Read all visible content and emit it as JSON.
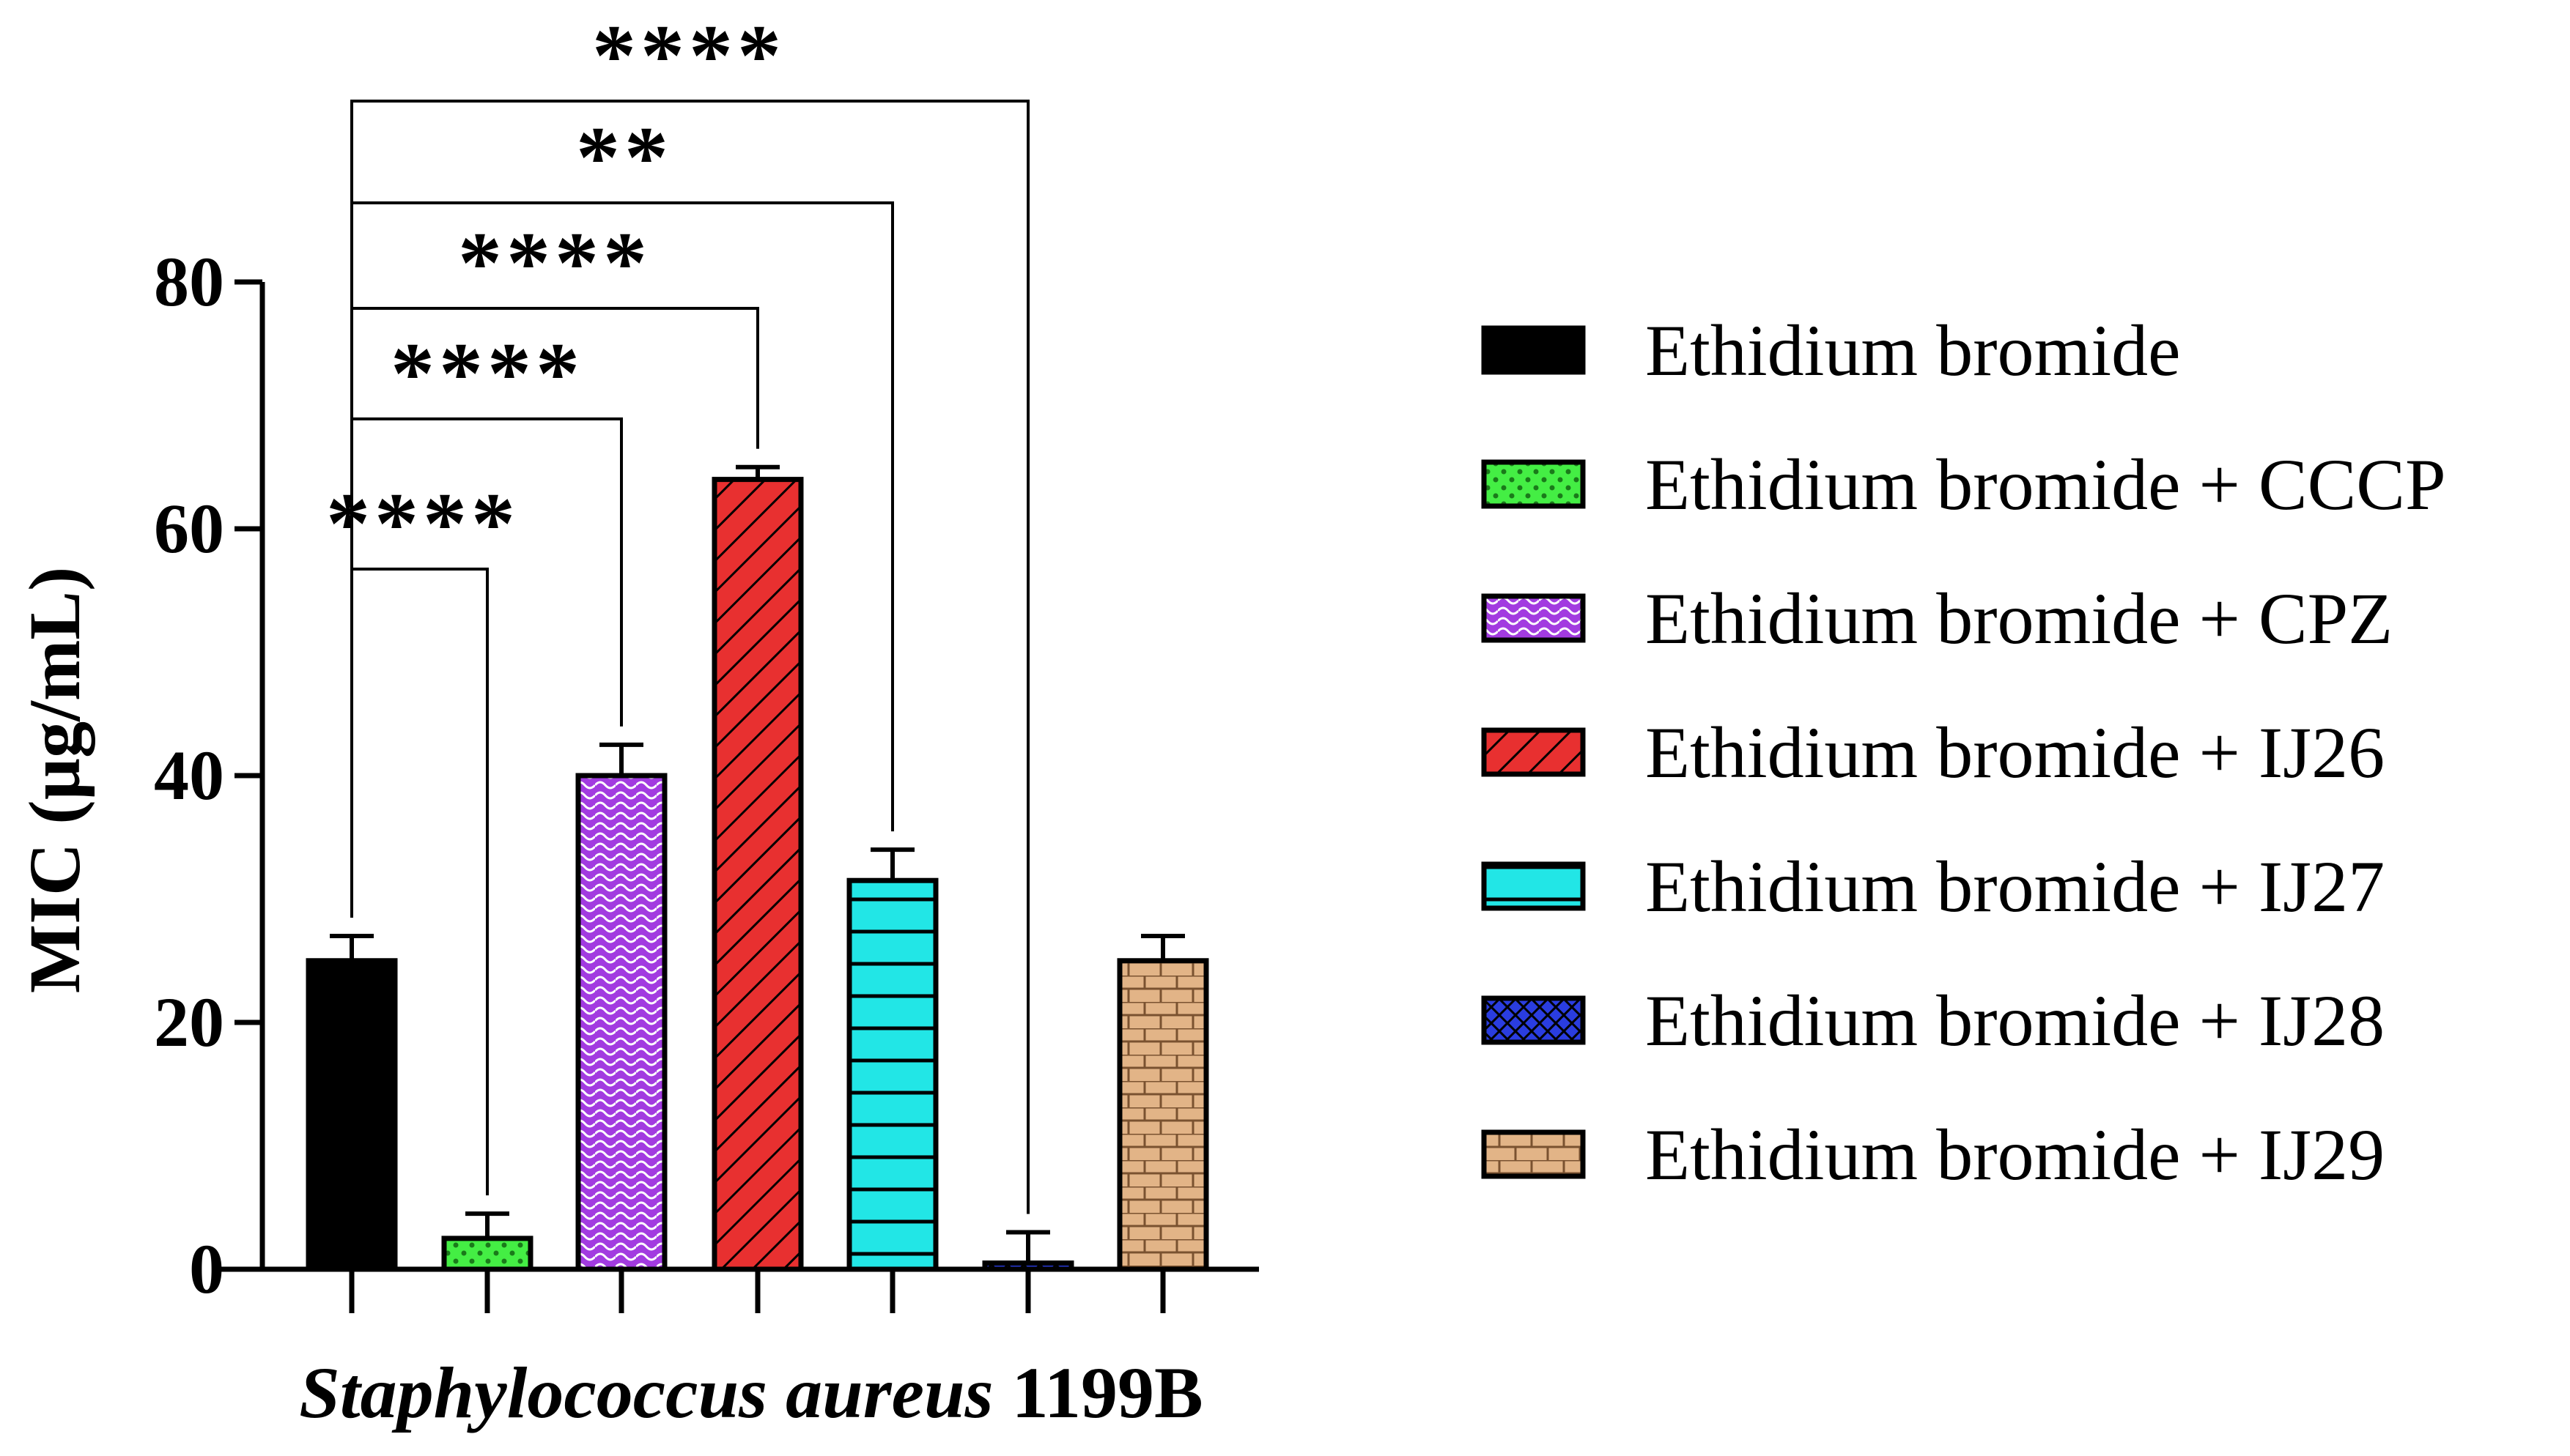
{
  "chart_data": {
    "type": "bar",
    "ylabel": "MIC (µg/mL)",
    "xlabel_italic": "Staphylococcus aureus",
    "xlabel_rest": " 1199B",
    "ylim": [
      0,
      80
    ],
    "yticks": [
      "0",
      "20",
      "40",
      "60",
      "80"
    ],
    "grid": false,
    "legend_position": "right",
    "series": [
      {
        "name": "Ethidium bromide",
        "value": 25,
        "error": 2,
        "color": "#000000",
        "pattern": "solid"
      },
      {
        "name": "Ethidium bromide + CCCP",
        "value": 2.5,
        "error": 2,
        "color": "#44ee44",
        "pattern": "dots"
      },
      {
        "name": "Ethidium bromide + CPZ",
        "value": 40,
        "error": 2.5,
        "color": "#a23be0",
        "pattern": "waves"
      },
      {
        "name": "Ethidium bromide + IJ26",
        "value": 64,
        "error": 1,
        "color": "#e83030",
        "pattern": "diagonal"
      },
      {
        "name": "Ethidium bromide + IJ27",
        "value": 31.5,
        "error": 2.5,
        "color": "#22e6e6",
        "pattern": "horizontal"
      },
      {
        "name": "Ethidium bromide + IJ28",
        "value": 0.5,
        "error": 2.5,
        "color": "#2a3de0",
        "pattern": "crosshatch"
      },
      {
        "name": "Ethidium bromide + IJ29",
        "value": 25,
        "error": 2,
        "color": "#e2b487",
        "pattern": "brick"
      }
    ],
    "annotations": [
      {
        "from": 0,
        "to": 1,
        "label": "****"
      },
      {
        "from": 0,
        "to": 2,
        "label": "****"
      },
      {
        "from": 0,
        "to": 3,
        "label": "****"
      },
      {
        "from": 0,
        "to": 4,
        "label": "**"
      },
      {
        "from": 0,
        "to": 5,
        "label": "****"
      }
    ]
  }
}
